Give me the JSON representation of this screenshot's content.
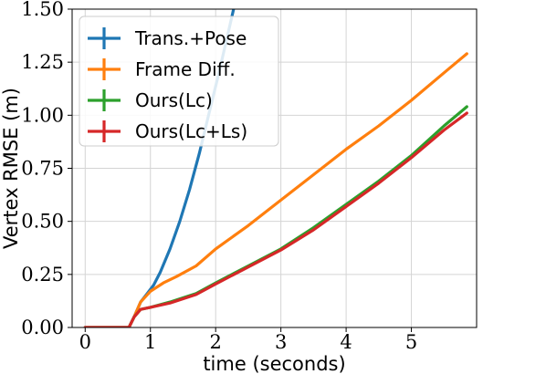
{
  "chart_data": {
    "type": "line",
    "xlabel": "time (seconds)",
    "ylabel": "Vertex RMSE (m)",
    "xlim": [
      -0.2,
      6.0
    ],
    "ylim": [
      0.0,
      1.5
    ],
    "xticks": [
      0,
      1,
      2,
      3,
      4,
      5
    ],
    "yticks": [
      "0.00",
      "0.25",
      "0.50",
      "0.75",
      "1.00",
      "1.25",
      "1.50"
    ],
    "grid": true,
    "legend_position": "top-left",
    "series": [
      {
        "name": "Trans.+Pose",
        "color": "#1f77b4",
        "x": [
          0.0,
          0.67,
          0.75,
          0.85,
          0.95,
          1.05,
          1.15,
          1.3,
          1.45,
          1.6,
          1.75,
          1.9,
          2.05,
          2.2,
          2.35
        ],
        "y": [
          0.0,
          0.0,
          0.05,
          0.12,
          0.16,
          0.2,
          0.26,
          0.37,
          0.5,
          0.65,
          0.82,
          1.01,
          1.2,
          1.4,
          1.6
        ]
      },
      {
        "name": "Frame Diff.",
        "color": "#ff7f0e",
        "x": [
          0.0,
          0.67,
          0.75,
          0.85,
          1.0,
          1.2,
          1.4,
          1.7,
          2.0,
          2.5,
          3.0,
          3.5,
          4.0,
          4.5,
          5.0,
          5.5,
          5.85
        ],
        "y": [
          0.0,
          0.0,
          0.05,
          0.12,
          0.17,
          0.21,
          0.24,
          0.29,
          0.37,
          0.48,
          0.6,
          0.72,
          0.84,
          0.95,
          1.07,
          1.2,
          1.29
        ]
      },
      {
        "name": "Ours(Lc)",
        "color": "#2ca02c",
        "x": [
          0.0,
          0.67,
          0.75,
          0.85,
          1.0,
          1.3,
          1.7,
          2.0,
          2.5,
          3.0,
          3.5,
          4.0,
          4.5,
          5.0,
          5.5,
          5.85
        ],
        "y": [
          0.0,
          0.0,
          0.05,
          0.085,
          0.095,
          0.12,
          0.16,
          0.21,
          0.29,
          0.37,
          0.47,
          0.58,
          0.69,
          0.81,
          0.95,
          1.04
        ]
      },
      {
        "name": "Ours(Lc+Ls)",
        "color": "#d62728",
        "x": [
          0.0,
          0.67,
          0.75,
          0.85,
          1.0,
          1.3,
          1.7,
          2.0,
          2.5,
          3.0,
          3.5,
          4.0,
          4.5,
          5.0,
          5.5,
          5.85
        ],
        "y": [
          0.0,
          0.0,
          0.05,
          0.085,
          0.095,
          0.115,
          0.155,
          0.205,
          0.285,
          0.365,
          0.46,
          0.57,
          0.68,
          0.8,
          0.93,
          1.01
        ]
      }
    ]
  }
}
